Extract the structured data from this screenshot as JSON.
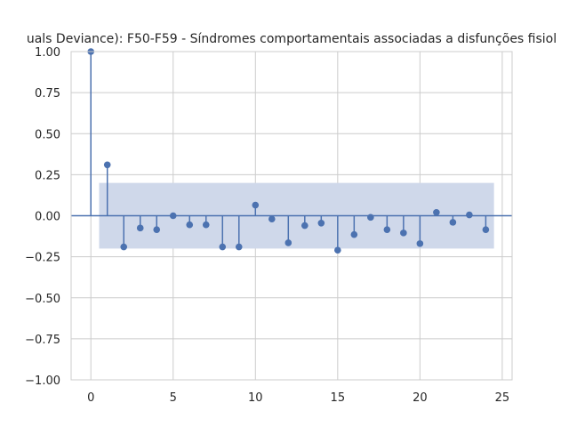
{
  "chart_data": {
    "type": "stem",
    "title": "uals Deviance): F50-F59 - Síndromes comportamentais associadas a disfunções fisiol",
    "xlabel": "",
    "ylabel": "",
    "xlim": [
      -1.2,
      25.6
    ],
    "ylim": [
      -1.0,
      1.0
    ],
    "x_ticks": [
      0,
      5,
      10,
      15,
      20,
      25
    ],
    "x_tick_labels": [
      "0",
      "5",
      "10",
      "15",
      "20",
      "25"
    ],
    "y_ticks": [
      -1.0,
      -0.75,
      -0.5,
      -0.25,
      0.0,
      0.25,
      0.5,
      0.75,
      1.0
    ],
    "y_tick_labels": [
      "−1.00",
      "−0.75",
      "−0.50",
      "−0.25",
      "0.00",
      "0.25",
      "0.50",
      "0.75",
      "1.00"
    ],
    "grid": true,
    "lags": [
      0,
      1,
      2,
      3,
      4,
      5,
      6,
      7,
      8,
      9,
      10,
      11,
      12,
      13,
      14,
      15,
      16,
      17,
      18,
      19,
      20,
      21,
      22,
      23,
      24
    ],
    "values": [
      1.0,
      0.31,
      -0.19,
      -0.075,
      -0.085,
      0.0,
      -0.055,
      -0.055,
      -0.19,
      -0.19,
      0.065,
      -0.02,
      -0.165,
      -0.06,
      -0.045,
      -0.21,
      -0.115,
      -0.01,
      -0.085,
      -0.105,
      -0.17,
      0.02,
      -0.04,
      0.005,
      -0.085
    ],
    "confidence_band": {
      "x_start": 0.5,
      "x_end": 24.5,
      "upper": 0.2,
      "lower": -0.2
    },
    "colors": {
      "stem": "#4c72b0",
      "band": "#cfd8ea",
      "grid": "#cccccc",
      "spine": "#cccccc"
    }
  }
}
